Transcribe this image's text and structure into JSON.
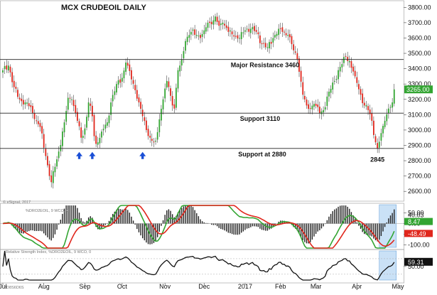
{
  "chart_data": {
    "type": "candlestick",
    "title": "MCX CRUDEOIL DAILY",
    "watermark": "© eSignal, 2017",
    "colors": {
      "up": "#33a532",
      "down": "#e0261c",
      "wick": "#222222",
      "highlight": "#a6cdf0",
      "last_price_bg": "#33a532"
    },
    "x_labels": [
      "Jul",
      "Aug",
      "Sep",
      "Oct",
      "Nov",
      "Dec",
      "2017",
      "Feb",
      "Mar",
      "Apr",
      "May"
    ],
    "x_label_positions": [
      0,
      22,
      44,
      64,
      87,
      108,
      130,
      149,
      168,
      190,
      212
    ],
    "ylim": [
      2550,
      3820
    ],
    "yticks": [
      2600,
      2700,
      2800,
      2900,
      3000,
      3100,
      3200,
      3300,
      3400,
      3500,
      3600,
      3700,
      3800
    ],
    "ytick_labels": [
      "2600.00",
      "2700.00",
      "2800.00",
      "2900.00",
      "3000.00",
      "3100.00",
      "3200.00",
      "3300.00",
      "3400.00",
      "3500.00",
      "3600.00",
      "3700.00",
      "3800.00"
    ],
    "last_price": 3265,
    "last_price_label": "3265.00",
    "close_anchors": [
      [
        0,
        3390
      ],
      [
        3,
        3420
      ],
      [
        6,
        3280
      ],
      [
        9,
        3200
      ],
      [
        12,
        3180
      ],
      [
        15,
        3150
      ],
      [
        18,
        3060
      ],
      [
        20,
        3020
      ],
      [
        23,
        2830
      ],
      [
        25,
        2700
      ],
      [
        26,
        2660
      ],
      [
        28,
        2760
      ],
      [
        30,
        2860
      ],
      [
        33,
        3050
      ],
      [
        35,
        3210
      ],
      [
        37,
        3200
      ],
      [
        40,
        3060
      ],
      [
        42,
        2950
      ],
      [
        44,
        3010
      ],
      [
        46,
        3180
      ],
      [
        48,
        3090
      ],
      [
        49,
        2960
      ],
      [
        50,
        2910
      ],
      [
        51,
        2920
      ],
      [
        53,
        2990
      ],
      [
        56,
        3050
      ],
      [
        58,
        3180
      ],
      [
        61,
        3300
      ],
      [
        64,
        3340
      ],
      [
        66,
        3440
      ],
      [
        67,
        3420
      ],
      [
        69,
        3330
      ],
      [
        71,
        3260
      ],
      [
        73,
        3180
      ],
      [
        75,
        3090
      ],
      [
        77,
        3000
      ],
      [
        79,
        2950
      ],
      [
        81,
        2920
      ],
      [
        82,
        2930
      ],
      [
        84,
        3070
      ],
      [
        86,
        3200
      ],
      [
        88,
        3320
      ],
      [
        89,
        3280
      ],
      [
        91,
        3160
      ],
      [
        92,
        3140
      ],
      [
        94,
        3390
      ],
      [
        96,
        3460
      ],
      [
        98,
        3580
      ],
      [
        101,
        3640
      ],
      [
        104,
        3620
      ],
      [
        106,
        3600
      ],
      [
        108,
        3650
      ],
      [
        110,
        3700
      ],
      [
        112,
        3690
      ],
      [
        114,
        3740
      ],
      [
        116,
        3680
      ],
      [
        118,
        3700
      ],
      [
        121,
        3640
      ],
      [
        124,
        3610
      ],
      [
        127,
        3600
      ],
      [
        130,
        3650
      ],
      [
        133,
        3660
      ],
      [
        136,
        3640
      ],
      [
        139,
        3560
      ],
      [
        142,
        3540
      ],
      [
        145,
        3600
      ],
      [
        148,
        3660
      ],
      [
        150,
        3640
      ],
      [
        153,
        3620
      ],
      [
        155,
        3560
      ],
      [
        156,
        3520
      ],
      [
        158,
        3460
      ],
      [
        159,
        3380
      ],
      [
        161,
        3230
      ],
      [
        163,
        3160
      ],
      [
        165,
        3140
      ],
      [
        167,
        3170
      ],
      [
        170,
        3110
      ],
      [
        172,
        3130
      ],
      [
        175,
        3250
      ],
      [
        178,
        3320
      ],
      [
        180,
        3390
      ],
      [
        182,
        3430
      ],
      [
        184,
        3480
      ],
      [
        186,
        3450
      ],
      [
        189,
        3350
      ],
      [
        192,
        3230
      ],
      [
        194,
        3160
      ],
      [
        196,
        3130
      ],
      [
        198,
        3060
      ],
      [
        200,
        2920
      ],
      [
        201,
        2880
      ],
      [
        203,
        2980
      ],
      [
        205,
        3060
      ],
      [
        207,
        3140
      ],
      [
        209,
        3180
      ],
      [
        210,
        3265
      ]
    ],
    "horizontal_levels": [
      {
        "value": 3460,
        "label": "Major Resistance 3460"
      },
      {
        "value": 3110,
        "label": "Support 3110"
      },
      {
        "value": 2880,
        "label": "Support at 2880"
      }
    ],
    "low_annotation": {
      "x": 201,
      "value": 2845,
      "label": "2845"
    },
    "arrows_at_x": [
      41,
      48,
      75
    ],
    "macd": {
      "label": "%DRO2EOIL, 9 WCO, 0",
      "ylim": [
        -115,
        85
      ],
      "yticks": [
        50,
        0,
        -50,
        -100
      ],
      "ytick_labels": [
        "50.00",
        "0.00",
        "-50.00",
        "-100.00"
      ],
      "readouts": [
        {
          "label": "40.03",
          "color": "#111111"
        },
        {
          "label": "8.47",
          "color": "#33a532"
        },
        {
          "label": "-48.49",
          "color": "#e0261c"
        }
      ]
    },
    "rsi": {
      "label": "Relative Strength Index, %DRO2EOIL, 9 WCO, 0",
      "ylim": [
        15,
        90
      ],
      "yticks": [
        50
      ],
      "ytick_labels": [
        "50.00"
      ],
      "readout": "59.31"
    },
    "corner_label": "3D8S6D6S"
  }
}
